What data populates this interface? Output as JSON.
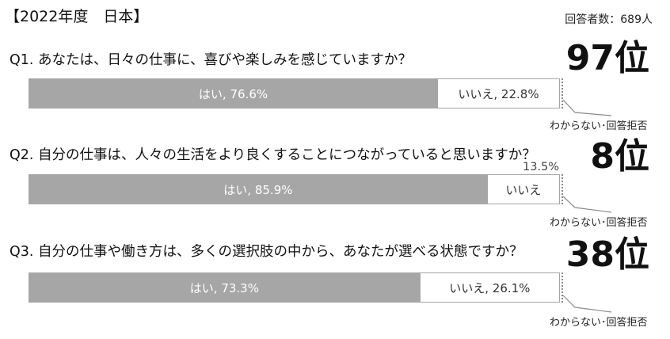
{
  "header": {
    "title": "【2022年度　日本】",
    "respondents": "回答者数：689人"
  },
  "chart_data": {
    "type": "bar",
    "stacked": true,
    "orientation": "horizontal",
    "questions": [
      {
        "text": "Q1. あなたは、日々の仕事に、喜びや楽しみを感じていますか？",
        "rank": "97位",
        "yes": 76.6,
        "no": 22.8,
        "yes_label": "はい, 76.6%",
        "no_label": "いいえ, 22.8%",
        "no_outside_label": "",
        "refusal_label": "わからない･回答拒否"
      },
      {
        "text": "Q2. 自分の仕事は、人々の生活をより良くすることにつながっていると思いますか？",
        "rank": "8位",
        "yes": 85.9,
        "no": 13.5,
        "yes_label": "はい, 85.9%",
        "no_label": "いいえ",
        "no_outside_label": "13.5%",
        "refusal_label": "わからない･回答拒否"
      },
      {
        "text": "Q3. 自分の仕事や働き方は、多くの選択肢の中から、あなたが選べる状態ですか？",
        "rank": "38位",
        "yes": 73.3,
        "no": 26.1,
        "yes_label": "はい, 73.3%",
        "no_label": "いいえ, 26.1%",
        "no_outside_label": "",
        "refusal_label": "わからない･回答拒否"
      }
    ]
  }
}
